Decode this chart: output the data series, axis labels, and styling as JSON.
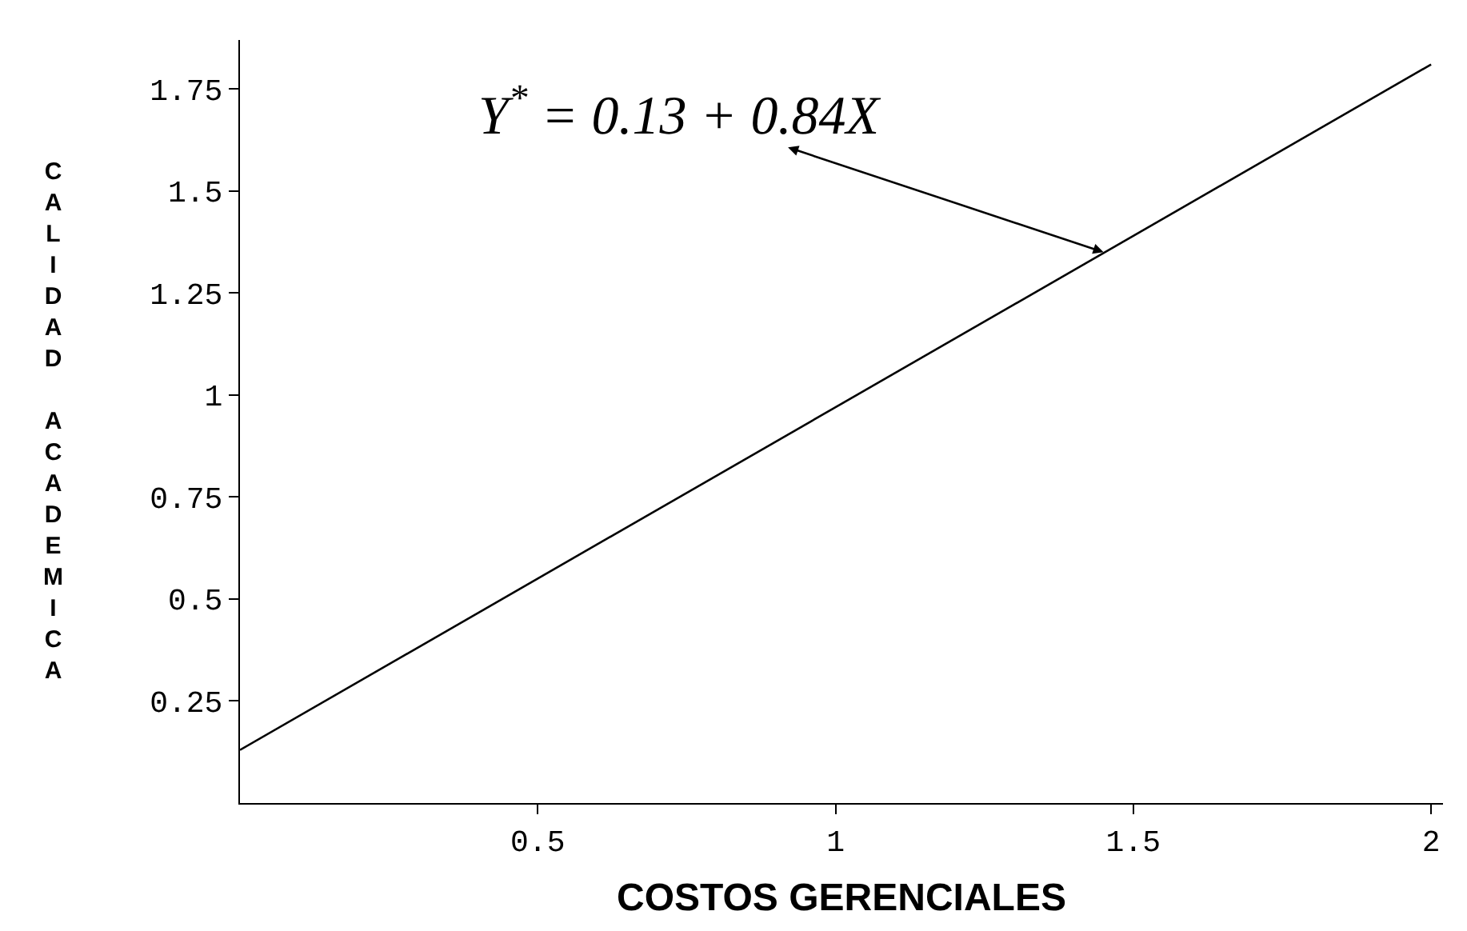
{
  "chart_data": {
    "type": "line",
    "xlabel": "COSTOS GERENCIALES",
    "ylabel": "CALIDAD ACADEMICA",
    "x": [
      0,
      2
    ],
    "series": [
      {
        "color": "#000000",
        "values": [
          0.13,
          1.81
        ]
      }
    ],
    "xlim": [
      0,
      2.02
    ],
    "ylim": [
      0,
      1.87
    ],
    "xticks": [
      0.5,
      1,
      1.5,
      2
    ],
    "yticks": [
      0.25,
      0.5,
      0.75,
      1,
      1.25,
      1.5,
      1.75
    ],
    "annotations": [
      {
        "text": "Y$^{*}$ = 0.13 + 0.84X",
        "x": 1.45,
        "y": 1.35
      }
    ],
    "line_style": "solid",
    "marker": "none"
  }
}
